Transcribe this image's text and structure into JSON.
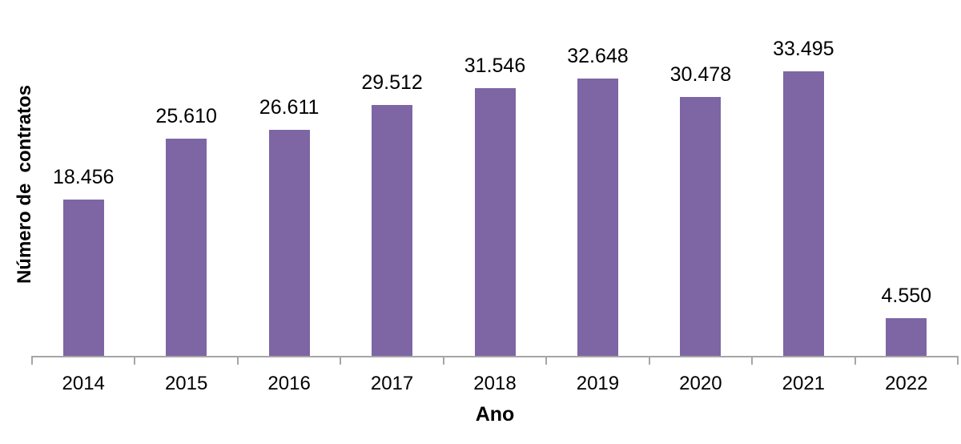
{
  "chart_data": {
    "type": "bar",
    "title": "",
    "categories": [
      "2014",
      "2015",
      "2016",
      "2017",
      "2018",
      "2019",
      "2020",
      "2021",
      "2022"
    ],
    "values": [
      18456,
      25610,
      26611,
      29512,
      31546,
      32648,
      30478,
      33495,
      4550
    ],
    "value_labels": [
      "18.456",
      "25.610",
      "26.611",
      "29.512",
      "31.546",
      "32.648",
      "30.478",
      "33.495",
      "4.550"
    ],
    "xlabel": "Ano",
    "ylabel": "Número de  contratos",
    "ylim": [
      0,
      40000
    ],
    "grid": false,
    "legend": "none",
    "bar_color": "#7D66A3",
    "axis_color": "#A6A6A6",
    "text_color": "#000000",
    "background": "#FFFFFF"
  }
}
